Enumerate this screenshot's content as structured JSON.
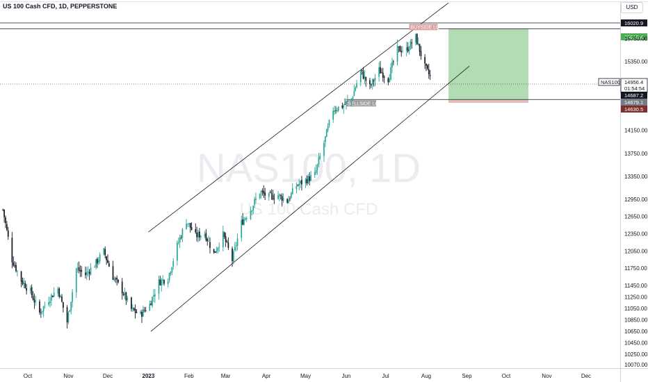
{
  "header": {
    "title": "US 100 Cash CFD, 1D, PEPPERSTONE",
    "currency_button": "USD"
  },
  "watermark": {
    "symbol": "NAS100, 1D",
    "description": "US 100 Cash CFD"
  },
  "colors": {
    "up": "#26a69a",
    "down": "#131722",
    "target_zone": "#a5d6a7",
    "stop_zone": "#e0b4b4",
    "price_label": "#131722",
    "target_label": "#4caf50",
    "stop_label": "#7f2e2e",
    "entry_label": "#787b86",
    "zone_label_bg": "#9e9e9e",
    "buyside_label_bg": "#d9a3a3"
  },
  "chart_data": {
    "type": "candlestick",
    "symbol": "NAS100",
    "timeframe": "1D",
    "ylim": [
      10000,
      16250
    ],
    "y_ticks": [
      16020.9,
      15919.4,
      15750,
      15350,
      14956.4,
      14687.2,
      14679.1,
      14630.5,
      14150,
      13750,
      13350,
      12950,
      12650,
      12350,
      12050,
      11750,
      11450,
      11250,
      11050,
      10850,
      10650,
      10450,
      10250,
      10070
    ],
    "x_labels": [
      "Oct",
      "Nov",
      "Dec",
      "2023",
      "Feb",
      "Mar",
      "Apr",
      "May",
      "Jun",
      "Jul",
      "Aug",
      "Sep",
      "Oct",
      "Nov",
      "Dec"
    ],
    "x_label_start": "2022-10-01",
    "x_end": "2023-12-31",
    "current_price": 14956.4,
    "countdown": "01:54:54",
    "price_label_symbol": "NAS100",
    "levels": {
      "high_line": 16020.9,
      "buyside_line": 15919.4,
      "sellside_line": 14687.2
    },
    "position": {
      "type": "long",
      "start": "2023-08-18",
      "end": "2023-10-18",
      "entry": 14679.1,
      "target": 15919.4,
      "stop": 14630.5
    },
    "zone_labels": {
      "buyside": "BUYSIDE LQ",
      "sellside": "SELLSIDE LQ"
    },
    "channel": {
      "upper": [
        {
          "date": "2023-01-01",
          "price": 12380
        },
        {
          "date": "2023-08-18",
          "price": 16370
        }
      ],
      "lower": [
        {
          "date": "2023-01-03",
          "price": 10650
        },
        {
          "date": "2023-09-03",
          "price": 15270
        }
      ]
    },
    "candles": [
      {
        "date": "2022-09-12",
        "close": 12770
      },
      {
        "date": "2022-09-19",
        "close": 11900
      },
      {
        "date": "2022-09-26",
        "close": 11540
      },
      {
        "date": "2022-10-03",
        "close": 11340
      },
      {
        "date": "2022-10-10",
        "close": 10970
      },
      {
        "date": "2022-10-17",
        "close": 11210
      },
      {
        "date": "2022-10-24",
        "close": 11400
      },
      {
        "date": "2022-10-31",
        "close": 10810
      },
      {
        "date": "2022-11-07",
        "close": 11740
      },
      {
        "date": "2022-11-14",
        "close": 11640
      },
      {
        "date": "2022-11-21",
        "close": 11810
      },
      {
        "date": "2022-11-28",
        "close": 12040
      },
      {
        "date": "2022-12-05",
        "close": 11600
      },
      {
        "date": "2022-12-12",
        "close": 11360
      },
      {
        "date": "2022-12-19",
        "close": 11030
      },
      {
        "date": "2022-12-26",
        "close": 10940
      },
      {
        "date": "2023-01-02",
        "close": 11120
      },
      {
        "date": "2023-01-09",
        "close": 11510
      },
      {
        "date": "2023-01-16",
        "close": 11580
      },
      {
        "date": "2023-01-23",
        "close": 12140
      },
      {
        "date": "2023-01-30",
        "close": 12580
      },
      {
        "date": "2023-02-06",
        "close": 12310
      },
      {
        "date": "2023-02-13",
        "close": 12360
      },
      {
        "date": "2023-02-20",
        "close": 12000
      },
      {
        "date": "2023-02-27",
        "close": 12330
      },
      {
        "date": "2023-03-06",
        "close": 11890
      },
      {
        "date": "2023-03-13",
        "close": 12540
      },
      {
        "date": "2023-03-20",
        "close": 12770
      },
      {
        "date": "2023-03-27",
        "close": 13080
      },
      {
        "date": "2023-04-03",
        "close": 12990
      },
      {
        "date": "2023-04-10",
        "close": 13020
      },
      {
        "date": "2023-04-17",
        "close": 12920
      },
      {
        "date": "2023-04-24",
        "close": 13190
      },
      {
        "date": "2023-05-01",
        "close": 13280
      },
      {
        "date": "2023-05-08",
        "close": 13370
      },
      {
        "date": "2023-05-15",
        "close": 13930
      },
      {
        "date": "2023-05-22",
        "close": 14520
      },
      {
        "date": "2023-05-29",
        "close": 14570
      },
      {
        "date": "2023-06-05",
        "close": 14700
      },
      {
        "date": "2023-06-12",
        "close": 15180
      },
      {
        "date": "2023-06-19",
        "close": 14900
      },
      {
        "date": "2023-06-26",
        "close": 15200
      },
      {
        "date": "2023-07-03",
        "close": 15050
      },
      {
        "date": "2023-07-10",
        "close": 15560
      },
      {
        "date": "2023-07-17",
        "close": 15550
      },
      {
        "date": "2023-07-24",
        "close": 15770
      },
      {
        "date": "2023-07-31",
        "close": 15250
      },
      {
        "date": "2023-08-07",
        "close": 14956.4
      }
    ]
  }
}
